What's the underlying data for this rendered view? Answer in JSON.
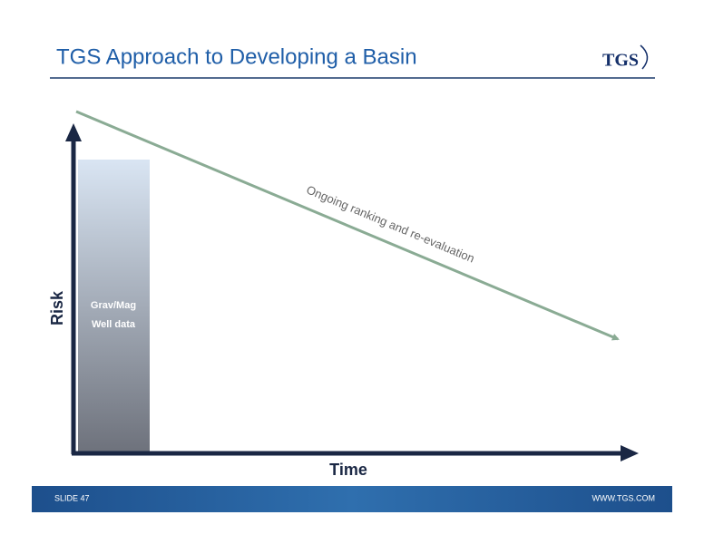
{
  "header": {
    "title": "TGS Approach to Developing a Basin",
    "logo": "TGS"
  },
  "diagram": {
    "y_axis_label": "Risk",
    "x_axis_label": "Time",
    "bar_labels": [
      "Grav/Mag",
      "Well data"
    ],
    "trend_label": "Ongoing ranking and re-evaluation"
  },
  "footer": {
    "slide": "SLIDE 47",
    "url": "WWW.TGS.COM"
  }
}
